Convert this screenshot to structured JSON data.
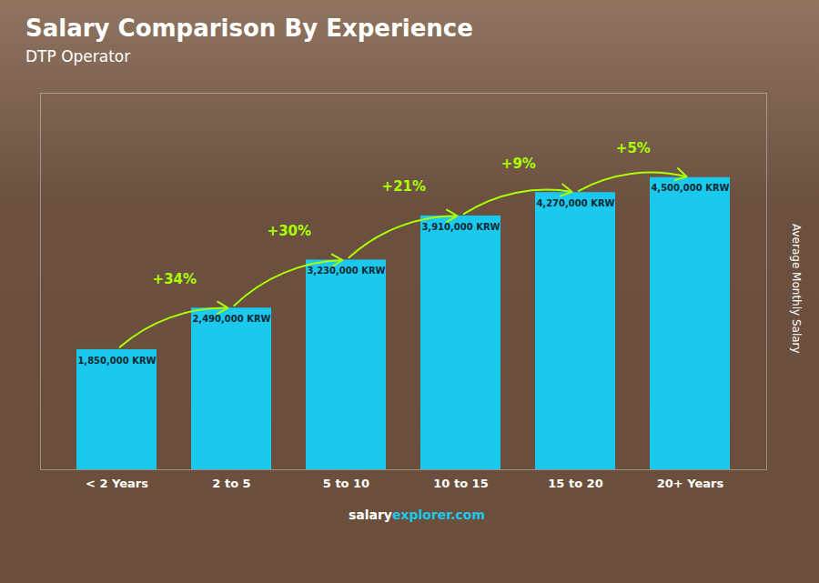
{
  "chart_data": {
    "type": "bar",
    "title": "Salary Comparison By Experience",
    "subtitle": "DTP Operator",
    "categories": [
      "< 2 Years",
      "2 to 5",
      "5 to 10",
      "10 to 15",
      "15 to 20",
      "20+ Years"
    ],
    "values": [
      1850000,
      2490000,
      3230000,
      3910000,
      4270000,
      4500000
    ],
    "value_labels": [
      "1,850,000 KRW",
      "2,490,000 KRW",
      "3,230,000 KRW",
      "3,910,000 KRW",
      "4,270,000 KRW",
      "4,500,000 KRW"
    ],
    "data_labels": true,
    "annotations": [
      "+34%",
      "+30%",
      "+21%",
      "+9%",
      "+5%"
    ],
    "ylabel": "Average Monthly Salary",
    "footer": [
      "salary",
      "explorer.com"
    ],
    "color": "#1BC8EE",
    "ylim": [
      0,
      5800000
    ],
    "grid": false,
    "tick_labels": "x"
  }
}
